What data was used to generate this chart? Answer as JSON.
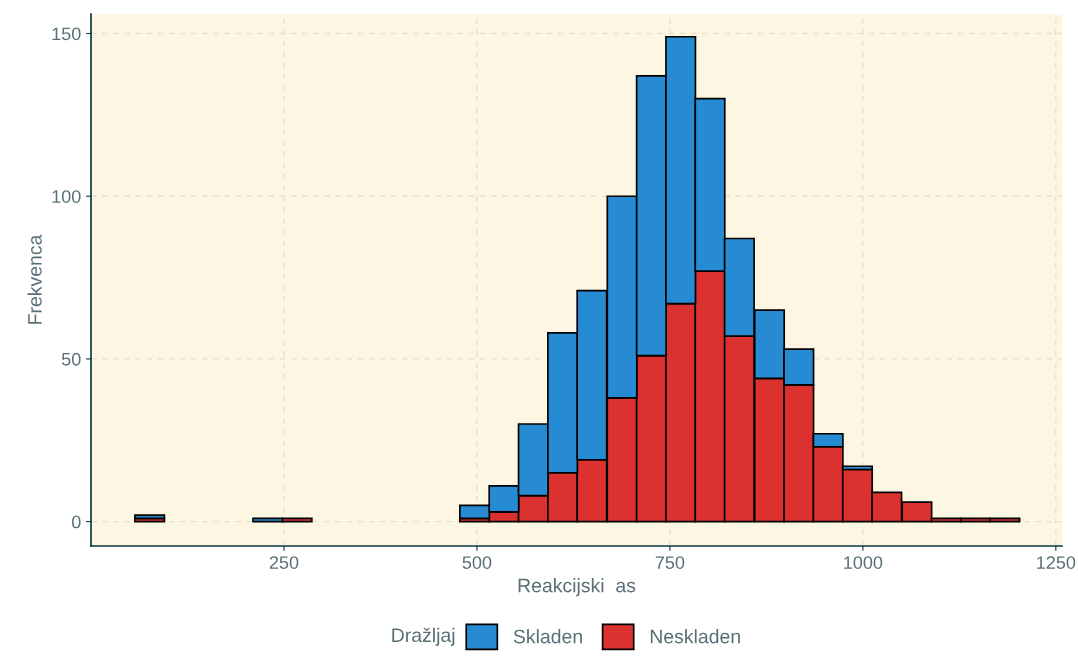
{
  "chart_data": {
    "type": "bar",
    "xlabel": "Reakcijski  as",
    "ylabel": "Frekvenca",
    "legend_title": "Dražljaj",
    "x": [
      76,
      115,
      153,
      191,
      229,
      267,
      306,
      344,
      382,
      420,
      458,
      497,
      535,
      573,
      611,
      649,
      688,
      726,
      764,
      802,
      840,
      879,
      917,
      955,
      993,
      1031,
      1070,
      1108,
      1146,
      1184
    ],
    "stacked": true,
    "series": [
      {
        "name": "Neskladen",
        "color": "#dc322f",
        "values": [
          1,
          0,
          0,
          0,
          0,
          1,
          0,
          0,
          0,
          0,
          0,
          1,
          3,
          8,
          15,
          19,
          38,
          51,
          67,
          77,
          57,
          44,
          42,
          23,
          16,
          9,
          6,
          1,
          1,
          1
        ]
      },
      {
        "name": "Skladen",
        "color": "#268bd2",
        "values": [
          1,
          0,
          0,
          0,
          1,
          0,
          0,
          0,
          0,
          0,
          0,
          4,
          8,
          22,
          43,
          52,
          62,
          86,
          82,
          53,
          30,
          21,
          11,
          4,
          1,
          0,
          0,
          0,
          0,
          0
        ]
      }
    ],
    "xlim": [
      0,
      1258
    ],
    "ylim": [
      -7.5,
      156
    ],
    "xticks": [
      250,
      500,
      750,
      1000,
      1250
    ],
    "yticks": [
      0,
      50,
      100,
      150
    ],
    "grid": true,
    "legend": "bottom"
  }
}
